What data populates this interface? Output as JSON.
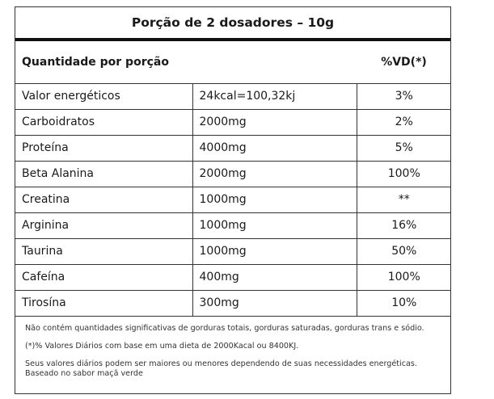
{
  "title": "Porção de 2 dosadores – 10g",
  "header": {
    "label": "Quantidade por porção",
    "vd": "%VD(*)"
  },
  "rows": [
    {
      "name": "Valor energéticos",
      "amount": "24kcal=100,32kj",
      "vd": "3%"
    },
    {
      "name": "Carboidratos",
      "amount": "2000mg",
      "vd": "2%"
    },
    {
      "name": "Proteína",
      "amount": "4000mg",
      "vd": "5%"
    },
    {
      "name": "Beta Alanina",
      "amount": "2000mg",
      "vd": "100%"
    },
    {
      "name": "Creatina",
      "amount": "1000mg",
      "vd": "**"
    },
    {
      "name": "Arginina",
      "amount": "1000mg",
      "vd": "16%"
    },
    {
      "name": "Taurina",
      "amount": "1000mg",
      "vd": "50%"
    },
    {
      "name": "Cafeína",
      "amount": "400mg",
      "vd": "100%"
    },
    {
      "name": "Tirosína",
      "amount": "300mg",
      "vd": "10%"
    }
  ],
  "footer": {
    "note1": "Não contém quantidades significativas de gorduras totais, gorduras saturadas, gorduras trans e sódio.",
    "note2": "(*)% Valores Diários com base em uma dieta de 2000Kacal ou 8400KJ.",
    "note3": "Seus valores diários podem ser maiores ou menores dependendo de suas necessidades energéticas.",
    "note4": "Baseado no sabor maçã verde"
  }
}
